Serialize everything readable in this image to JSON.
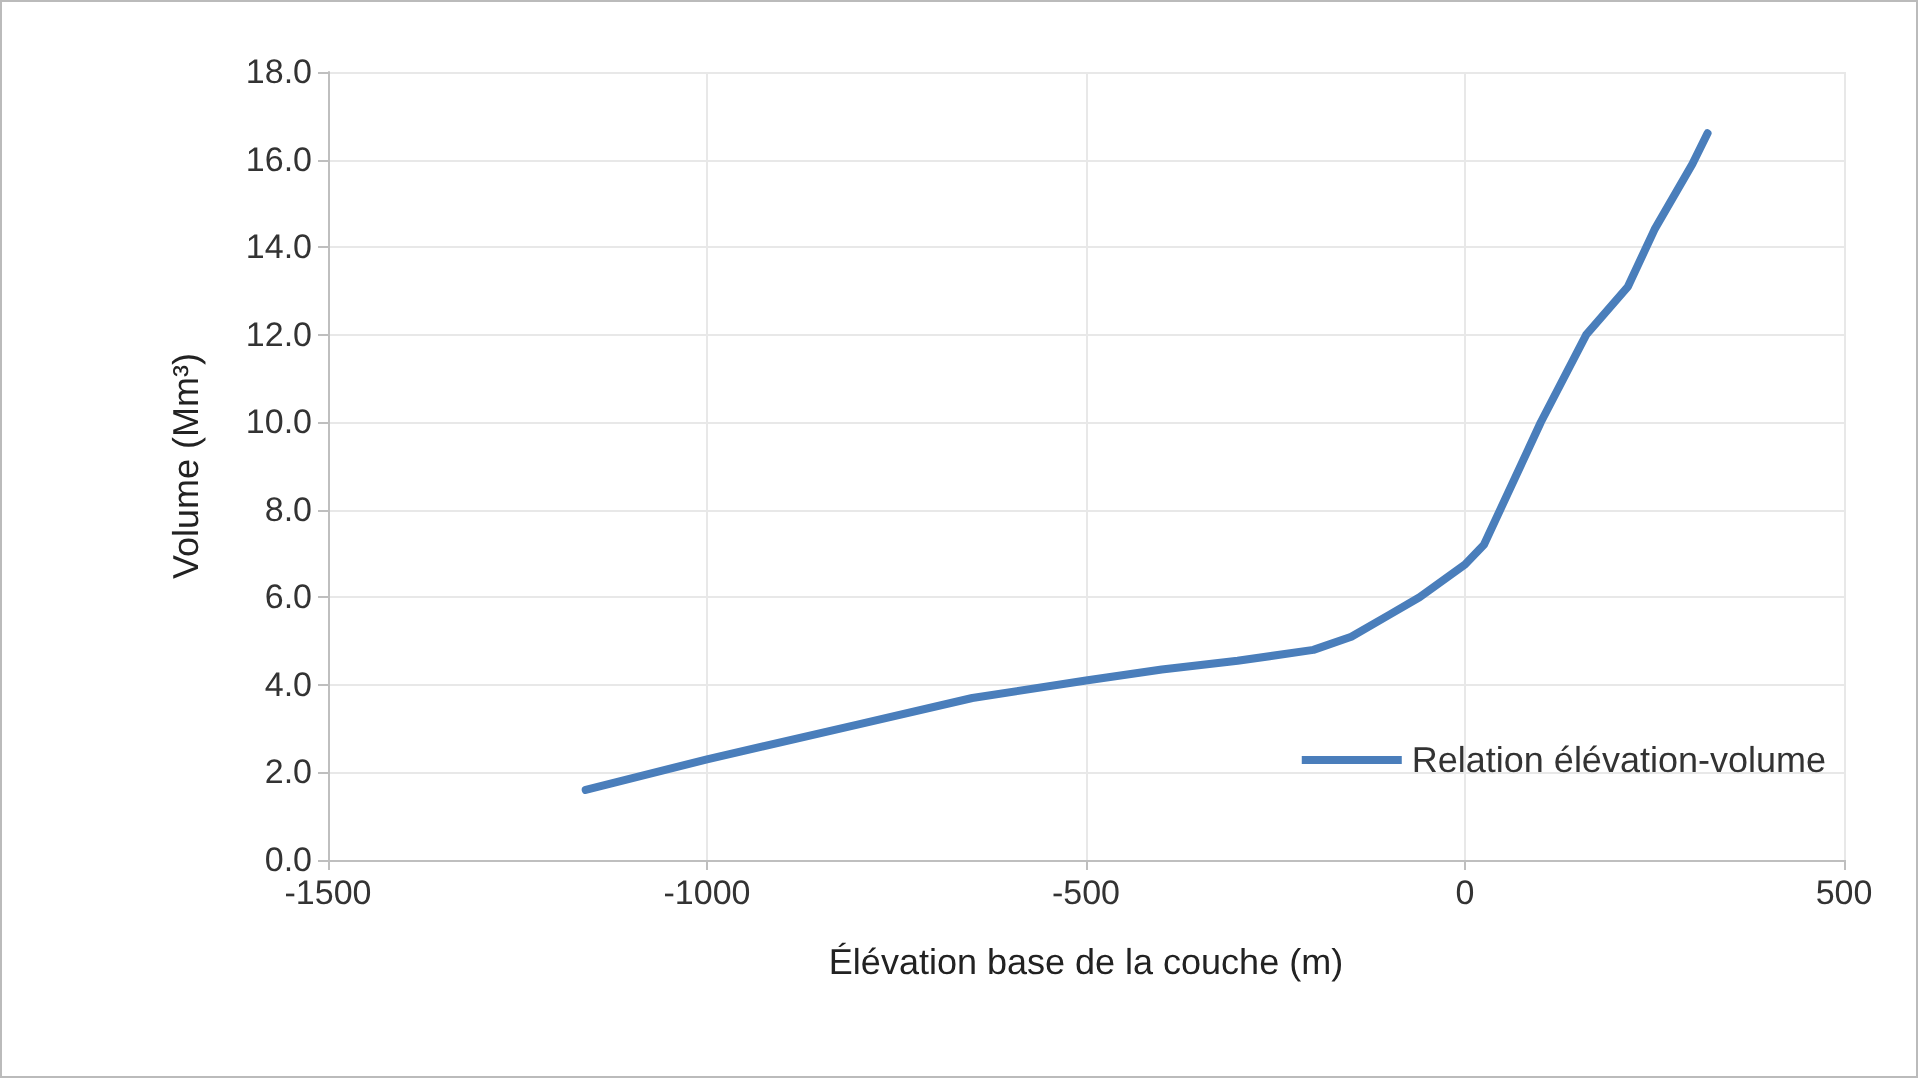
{
  "chart_data": {
    "type": "line",
    "xlabel": "Élévation base de la couche (m)",
    "ylabel": "Volume (Mm³)",
    "x": [
      -1160,
      -1000,
      -800,
      -650,
      -500,
      -400,
      -300,
      -200,
      -150,
      -100,
      -60,
      0,
      25,
      100,
      160,
      215,
      250,
      300,
      320
    ],
    "series": [
      {
        "name": "Relation élévation-volume",
        "color": "#4a7ebb",
        "values": [
          1.6,
          2.3,
          3.1,
          3.7,
          4.1,
          4.35,
          4.55,
          4.8,
          5.1,
          5.6,
          6.0,
          6.75,
          7.2,
          10.0,
          12.0,
          13.1,
          14.4,
          15.9,
          16.6
        ]
      }
    ],
    "xlim": [
      -1500,
      500
    ],
    "xticks": [
      -1500,
      -1000,
      -500,
      0,
      500
    ],
    "ylim": [
      0,
      18
    ],
    "yticks": [
      {
        "value": 0,
        "label": "0.0"
      },
      {
        "value": 2,
        "label": "2.0"
      },
      {
        "value": 4,
        "label": "4.0"
      },
      {
        "value": 6,
        "label": "6.0"
      },
      {
        "value": 8,
        "label": "8.0"
      },
      {
        "value": 10,
        "label": "10.0"
      },
      {
        "value": 12,
        "label": "12.0"
      },
      {
        "value": 14,
        "label": "14.0"
      },
      {
        "value": 16,
        "label": "16.0"
      },
      {
        "value": 18,
        "label": "18.0"
      }
    ],
    "grid": true,
    "legend": "right",
    "marker": "none",
    "line_style": "solid"
  }
}
